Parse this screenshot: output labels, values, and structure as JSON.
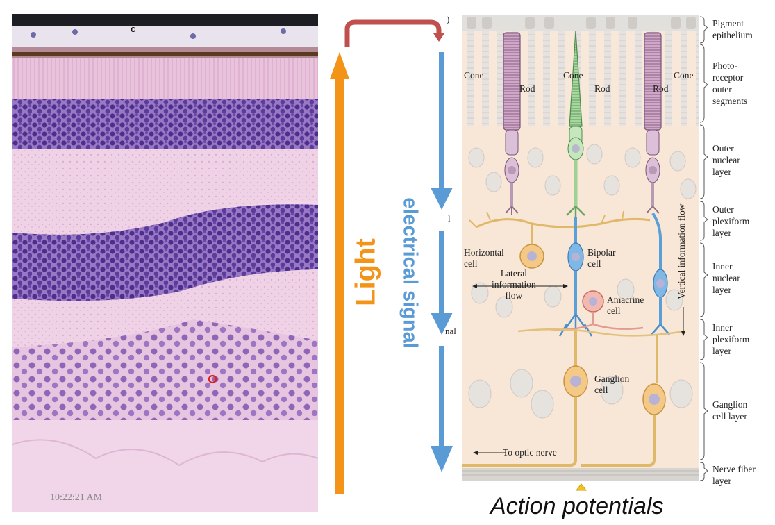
{
  "timestamp": "10:22:21 AM",
  "micrograph": {
    "label_c": "c"
  },
  "arrows": {
    "light_label": "Light",
    "signal_label": "electrical signal",
    "light_color": "#f39418",
    "signal_color": "#5b9bd5",
    "feedback_color": "#c0504d"
  },
  "diagram": {
    "cells": {
      "cone_left": "Cone",
      "rod_left": "Rod",
      "cone_mid": "Cone",
      "rod_mid": "Rod",
      "rod_right": "Rod",
      "cone_right": "Cone",
      "horizontal": "Horizontal\ncell",
      "lateral_flow": "Lateral\ninformation\nflow",
      "bipolar": "Bipolar\ncell",
      "amacrine": "Amacrine\ncell",
      "ganglion": "Ganglion\ncell",
      "vertical_flow": "Vertical information flow",
      "optic_nerve": "To optic nerve"
    },
    "layers": [
      "Pigment\nepithelium",
      "Photo-\nreceptor\nouter\nsegments",
      "Outer\nnuclear\nlayer",
      "Outer\nplexiform\nlayer",
      "Inner\nnuclear\nlayer",
      "Inner\nplexiform\nlayer",
      "Ganglion\ncell layer",
      "Nerve fiber\nlayer"
    ],
    "fragments": {
      "l": "l",
      "nal": "nal",
      "paren": ")"
    }
  },
  "caption": "Action potentials"
}
